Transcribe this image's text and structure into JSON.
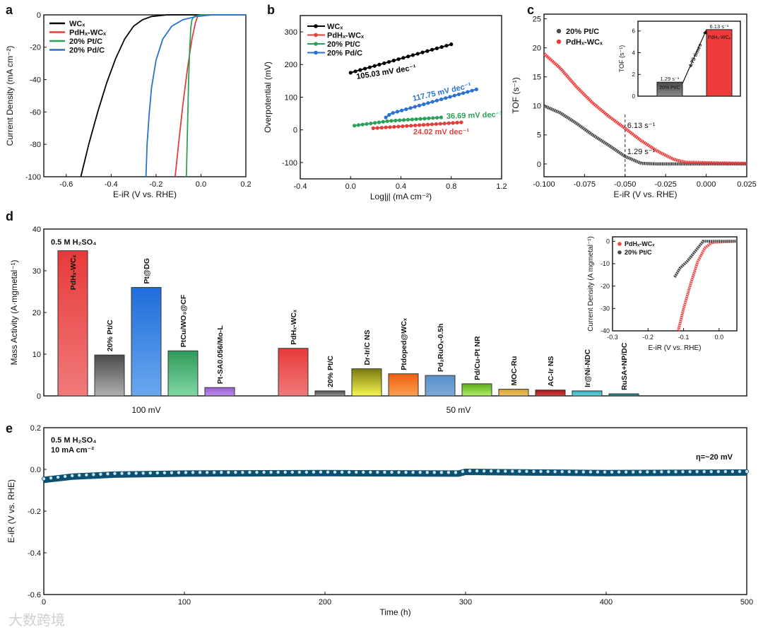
{
  "figure": {
    "panel_letters": [
      "a",
      "b",
      "c",
      "d",
      "e"
    ],
    "watermark": "大数跨境"
  },
  "chart_data": [
    {
      "panel": "a",
      "type": "line",
      "title": "",
      "xlabel": "E-iR (V vs. RHE)",
      "ylabel": "Current Density (mA cm⁻²)",
      "xlim": [
        -0.7,
        0.2
      ],
      "ylim": [
        -100,
        0
      ],
      "xticks": [
        "-0.6",
        "-0.4",
        "-0.2",
        "0.0",
        "0.2"
      ],
      "yticks": [
        "0",
        "-20",
        "-40",
        "-60",
        "-80",
        "-100"
      ],
      "legend": "top-left",
      "series": [
        {
          "name": "WCₓ",
          "color": "#000000",
          "points": [
            [
              -0.535,
              -100
            ],
            [
              -0.5,
              -80
            ],
            [
              -0.46,
              -60
            ],
            [
              -0.42,
              -42
            ],
            [
              -0.38,
              -27
            ],
            [
              -0.34,
              -15
            ],
            [
              -0.3,
              -7
            ],
            [
              -0.26,
              -3
            ],
            [
              -0.22,
              -1
            ],
            [
              -0.15,
              0
            ],
            [
              0.2,
              0
            ]
          ]
        },
        {
          "name": "PdHₓ-WCₓ",
          "color": "#e0403a",
          "points": [
            [
              -0.115,
              -100
            ],
            [
              -0.1,
              -80
            ],
            [
              -0.08,
              -55
            ],
            [
              -0.06,
              -33
            ],
            [
              -0.04,
              -15
            ],
            [
              -0.025,
              -5
            ],
            [
              -0.015,
              -1
            ],
            [
              0.0,
              0
            ],
            [
              0.2,
              0
            ]
          ]
        },
        {
          "name": "20% Pt/C",
          "color": "#2ca05a",
          "points": [
            [
              -0.065,
              -100
            ],
            [
              -0.06,
              -70
            ],
            [
              -0.055,
              -40
            ],
            [
              -0.05,
              -20
            ],
            [
              -0.045,
              -8
            ],
            [
              -0.04,
              -3
            ],
            [
              -0.03,
              -1
            ],
            [
              0.0,
              0
            ],
            [
              0.2,
              0
            ]
          ]
        },
        {
          "name": "20% Pd/C",
          "color": "#2a72d0",
          "points": [
            [
              -0.245,
              -100
            ],
            [
              -0.24,
              -80
            ],
            [
              -0.23,
              -60
            ],
            [
              -0.22,
              -45
            ],
            [
              -0.2,
              -28
            ],
            [
              -0.17,
              -15
            ],
            [
              -0.13,
              -7
            ],
            [
              -0.08,
              -3
            ],
            [
              -0.02,
              -1
            ],
            [
              0.05,
              0
            ],
            [
              0.2,
              0
            ]
          ]
        }
      ]
    },
    {
      "panel": "b",
      "type": "line",
      "xlabel": "Log|j| (mA cm⁻²)",
      "ylabel": "Overpotential (mV)",
      "xlim": [
        -0.4,
        1.2
      ],
      "ylim": [
        -150,
        350
      ],
      "xticks": [
        "-0.4",
        "0.0",
        "0.4",
        "0.8",
        "1.2"
      ],
      "yticks": [
        "300",
        "200",
        "100",
        "0",
        "-100"
      ],
      "legend": "top-left",
      "series": [
        {
          "name": "WCₓ",
          "color": "#000000",
          "points": [
            [
              0.0,
              175
            ],
            [
              0.8,
              262
            ]
          ],
          "tafel": "105.03 mV dec⁻¹"
        },
        {
          "name": "PdHₓ-WCₓ",
          "color": "#e0403a",
          "points": [
            [
              0.18,
              5
            ],
            [
              0.88,
              23
            ]
          ],
          "tafel": "24.02 mV dec⁻¹"
        },
        {
          "name": "20% Pt/C",
          "color": "#2ca05a",
          "points": [
            [
              0.03,
              13
            ],
            [
              0.3,
              27
            ],
            [
              0.72,
              38
            ]
          ],
          "tafel": "36.69 mV dec⁻¹"
        },
        {
          "name": "20% Pd/C",
          "color": "#2a72d0",
          "points": [
            [
              0.28,
              38
            ],
            [
              0.32,
              50
            ],
            [
              1.0,
              124
            ]
          ],
          "tafel": "117.75 mV dec⁻¹"
        }
      ]
    },
    {
      "panel": "c",
      "type": "scatter",
      "xlabel": "E-iR (V vs. RHE)",
      "ylabel": "TOF (s⁻¹)",
      "xlim": [
        -0.1,
        0.025
      ],
      "ylim": [
        -2.2,
        25.8
      ],
      "xticks": [
        "-0.100",
        "-0.075",
        "-0.050",
        "-0.025",
        "0.000",
        "0.025"
      ],
      "yticks": [
        "0",
        "5",
        "10",
        "15",
        "20",
        "25"
      ],
      "legend": "top-left",
      "marker_x": -0.05,
      "annotations": [
        "6.13 s⁻¹",
        "1.29 s⁻¹"
      ],
      "series": [
        {
          "name": "20% Pt/C",
          "color": "#4a4a4a",
          "points": [
            [
              -0.1,
              10
            ],
            [
              -0.09,
              8.8
            ],
            [
              -0.08,
              7
            ],
            [
              -0.07,
              5
            ],
            [
              -0.06,
              3.2
            ],
            [
              -0.05,
              1.29
            ],
            [
              -0.04,
              0.1
            ],
            [
              -0.03,
              0
            ],
            [
              0.025,
              0
            ]
          ]
        },
        {
          "name": "PdHₓ-WCₓ",
          "color": "#ee3b3b",
          "points": [
            [
              -0.1,
              19
            ],
            [
              -0.09,
              16.5
            ],
            [
              -0.08,
              13.3
            ],
            [
              -0.07,
              10.5
            ],
            [
              -0.06,
              8.2
            ],
            [
              -0.05,
              6.13
            ],
            [
              -0.04,
              4
            ],
            [
              -0.03,
              2.2
            ],
            [
              -0.02,
              0.8
            ],
            [
              -0.013,
              0.3
            ],
            [
              0.0,
              0.2
            ],
            [
              0.025,
              0.1
            ]
          ]
        }
      ]
    },
    {
      "panel": "c-inset",
      "type": "bar",
      "ylabel": "TOF (s⁻¹)",
      "xlim": [
        0,
        2
      ],
      "ylim": [
        0,
        6.9
      ],
      "yticks": [
        "0",
        "2",
        "4",
        "6"
      ],
      "categories": [
        "20% Pt/C",
        "PdHₓ-WCₓ"
      ],
      "values": [
        1.29,
        6.13
      ],
      "value_labels": [
        "1.29 s⁻¹",
        "6.13 s⁻¹"
      ],
      "colors": [
        [
          "#4a4a4a",
          "#8a8a8a"
        ],
        [
          "#ee3b3b",
          "#ee3b3b"
        ]
      ],
      "arrow_label": "4.75 times"
    },
    {
      "panel": "d",
      "type": "bar",
      "ylabel": "Mass Activity (A·mgmetal⁻¹)",
      "xlim": [
        0,
        1
      ],
      "ylim": [
        0,
        40
      ],
      "yticks": [
        "0",
        "10",
        "20",
        "30",
        "40"
      ],
      "condition": "0.5 M H₂SO₄",
      "groups": [
        {
          "label": "100 mV",
          "bars": [
            {
              "name": "PdHₓ-WCₓ",
              "value": 34.8,
              "color": [
                "#e83a3a",
                "#f07a7a"
              ]
            },
            {
              "name": "20% Pt/C",
              "value": 9.8,
              "color": [
                "#4a4a4a",
                "#b0b0b0"
              ]
            },
            {
              "name": "Pt@DG",
              "value": 26.0,
              "color": [
                "#1e6ddb",
                "#6aa8ee"
              ]
            },
            {
              "name": "PtCu/WO₃@CF",
              "value": 10.8,
              "color": [
                "#2e9a5a",
                "#80d8a2"
              ]
            },
            {
              "name": "Pt-SA0.056/Mo-L",
              "value": 2.0,
              "color": [
                "#9a5fd6",
                "#b88ae8"
              ]
            }
          ]
        },
        {
          "label": "50 mV",
          "bars": [
            {
              "name": "PdHₓ-WCₓ",
              "value": 11.4,
              "color": [
                "#e83a3a",
                "#f07a7a"
              ]
            },
            {
              "name": "20% Pt/C",
              "value": 1.2,
              "color": [
                "#4a4a4a",
                "#9a9a9a"
              ]
            },
            {
              "name": "Dr-Ir/C NS",
              "value": 6.5,
              "color": [
                "#7a7a10",
                "#f7f750"
              ]
            },
            {
              "name": "Ptdoped@WCₓ",
              "value": 5.3,
              "color": [
                "#f06010",
                "#f8a050"
              ]
            },
            {
              "name": "Pd₂RuOₓ-0.5h",
              "value": 4.9,
              "color": [
                "#5a8fc8",
                "#7aaad8"
              ]
            },
            {
              "name": "Pd/Cu-Pt NR",
              "value": 2.9,
              "color": [
                "#5aae1c",
                "#b0ee68"
              ]
            },
            {
              "name": "MOC-Ru",
              "value": 1.6,
              "color": [
                "#d8a030",
                "#ecc468"
              ]
            },
            {
              "name": "AC-Ir NS",
              "value": 1.4,
              "color": [
                "#a01818",
                "#d04040"
              ]
            },
            {
              "name": "Ir@Ni-NDC",
              "value": 1.2,
              "color": [
                "#30b0c0",
                "#66d4dc"
              ]
            },
            {
              "name": "RuSA+NP/DC",
              "value": 0.5,
              "color": [
                "#108080",
                "#30a0a0"
              ]
            }
          ]
        }
      ]
    },
    {
      "panel": "d-inset",
      "type": "scatter",
      "xlabel": "E-iR (V vs. RHE)",
      "ylabel": "Current Density (A mgmetal⁻¹)",
      "xlim": [
        -0.3,
        0.05
      ],
      "ylim": [
        -40,
        2
      ],
      "xticks": [
        "-0.3",
        "-0.2",
        "-0.1",
        "0.0"
      ],
      "yticks": [
        "0",
        "-10",
        "-20",
        "-30",
        "-40"
      ],
      "legend": "top-left",
      "series": [
        {
          "name": "PdHₓ-WCₓ",
          "color": "#ee4a4a",
          "points": [
            [
              -0.115,
              -40
            ],
            [
              -0.1,
              -30
            ],
            [
              -0.08,
              -19
            ],
            [
              -0.06,
              -9
            ],
            [
              -0.04,
              -3
            ],
            [
              -0.02,
              -0.5
            ],
            [
              0.05,
              0
            ]
          ]
        },
        {
          "name": "20% Pt/C",
          "color": "#4a4a4a",
          "points": [
            [
              -0.125,
              -16
            ],
            [
              -0.11,
              -12
            ],
            [
              -0.09,
              -9
            ],
            [
              -0.07,
              -5
            ],
            [
              -0.045,
              0
            ],
            [
              0.05,
              0
            ]
          ]
        }
      ]
    },
    {
      "panel": "e",
      "type": "line",
      "xlabel": "Time (h)",
      "ylabel": "E-iR (V vs. RHE)",
      "xlim": [
        0,
        500
      ],
      "ylim": [
        -0.6,
        0.2
      ],
      "xticks": [
        "0",
        "100",
        "200",
        "300",
        "400",
        "500"
      ],
      "yticks": [
        "0.2",
        "0.0",
        "-0.2",
        "-0.4",
        "-0.6"
      ],
      "conditions": [
        "0.5 M H₂SO₄",
        "10 mA cm⁻²"
      ],
      "overpotential_label": "η=~20 mV",
      "series": [
        {
          "name": "PdHₓ-WCₓ",
          "color": "#0d4f6e",
          "points": [
            [
              0,
              -0.05
            ],
            [
              20,
              -0.035
            ],
            [
              50,
              -0.025
            ],
            [
              100,
              -0.02
            ],
            [
              200,
              -0.018
            ],
            [
              295,
              -0.02
            ],
            [
              300,
              -0.012
            ],
            [
              400,
              -0.018
            ],
            [
              500,
              -0.015
            ]
          ]
        }
      ]
    }
  ]
}
